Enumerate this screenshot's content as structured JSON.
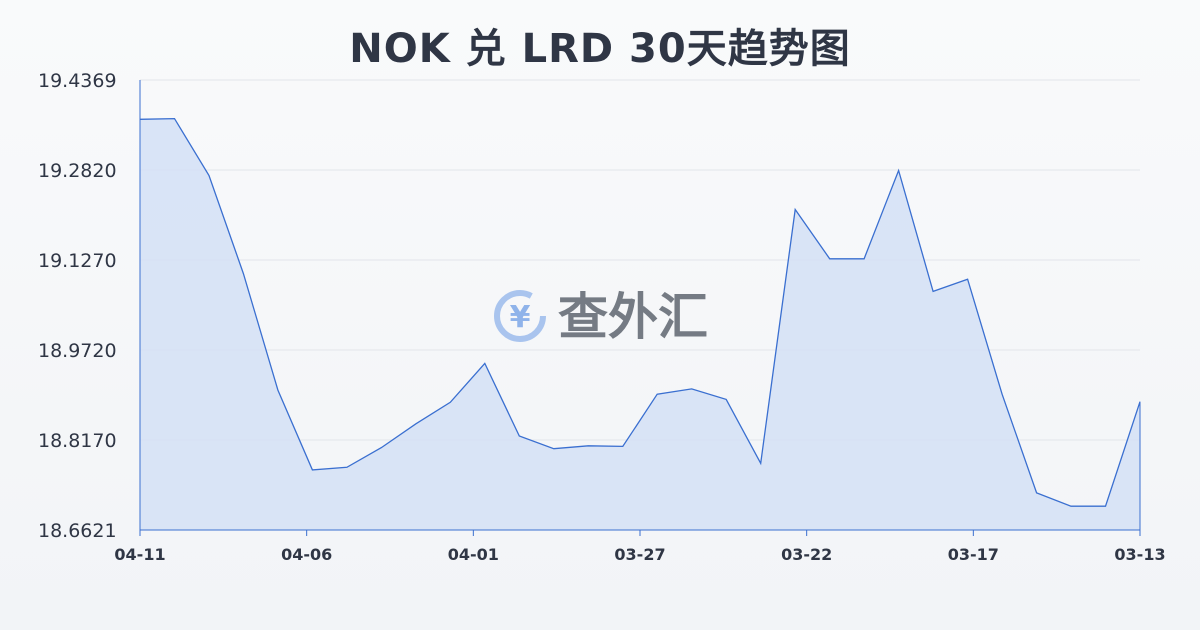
{
  "chart_data": {
    "type": "area",
    "title": "NOK 兑 LRD 30天趋势图",
    "xlabel": "",
    "ylabel": "",
    "ylim": [
      18.6621,
      19.4369
    ],
    "y_ticks": [
      "19.4369",
      "19.2820",
      "19.1270",
      "18.9720",
      "18.8170",
      "18.6621"
    ],
    "x_ticks": [
      "04-11",
      "04-06",
      "04-01",
      "03-27",
      "03-22",
      "03-17",
      "03-13"
    ],
    "x_axis_order": "newest-to-oldest",
    "grid": true,
    "legend": "none",
    "series": [
      {
        "values": [
          19.3693,
          19.3705,
          19.2725,
          19.1035,
          18.903,
          18.7655,
          18.77,
          18.804,
          18.845,
          18.882,
          18.949,
          18.824,
          18.802,
          18.807,
          18.806,
          18.896,
          18.905,
          18.887,
          18.777,
          19.214,
          19.129,
          19.129,
          19.281,
          19.073,
          19.094,
          18.896,
          18.726,
          18.703,
          18.703,
          18.883
        ]
      }
    ],
    "colors": {
      "line": "#3a6fd0",
      "fill": "#d4e0f6",
      "grid": "#e2e5ea",
      "axis": "#3a6fd0"
    }
  },
  "watermark": {
    "text": "查外汇",
    "icon": "yen-exchange-icon",
    "symbol": "¥"
  }
}
